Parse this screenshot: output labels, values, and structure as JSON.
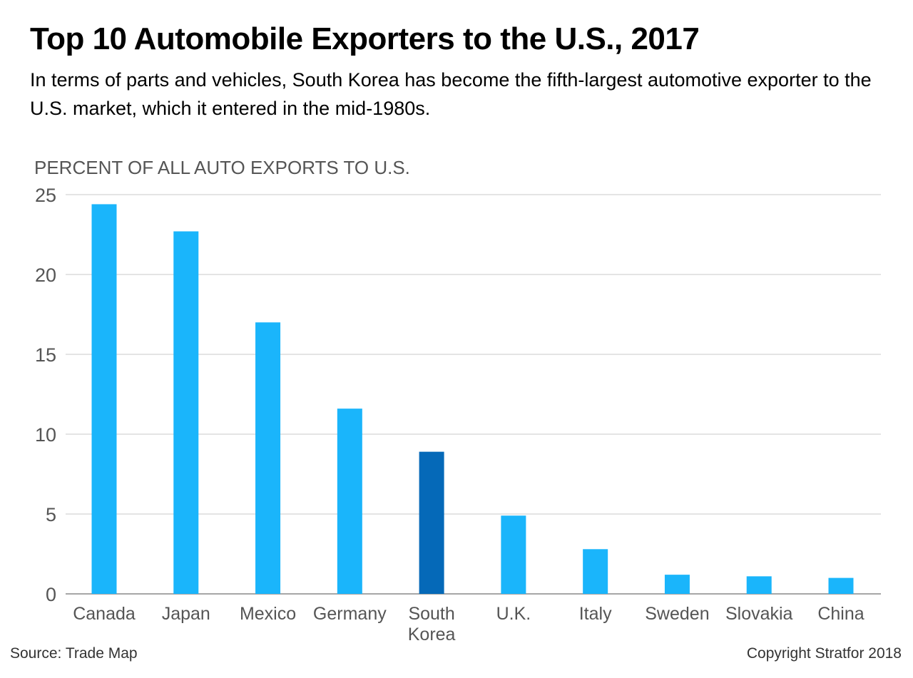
{
  "title": "Top 10 Automobile Exporters to the U.S., 2017",
  "subtitle": "In terms of parts and vehicles, South Korea has become the fifth-largest automotive exporter to the U.S. market, which it entered in the mid-1980s.",
  "source": "Source: Trade Map",
  "copyright": "Copyright Stratfor 2018",
  "colors": {
    "bar": "#1ab5fb",
    "highlight": "#0569b8",
    "grid": "#c8c8c8",
    "axis_text": "#555555"
  },
  "chart_data": {
    "type": "bar",
    "ylabel": "PERCENT OF ALL AUTO EXPORTS TO U.S.",
    "ylim": [
      0,
      25
    ],
    "yticks": [
      0,
      5,
      10,
      15,
      20,
      25
    ],
    "grid": true,
    "categories": [
      "Canada",
      "Japan",
      "Mexico",
      "Germany",
      "South Korea",
      "U.K.",
      "Italy",
      "Sweden",
      "Slovakia",
      "China"
    ],
    "category_lines": [
      [
        "Canada"
      ],
      [
        "Japan"
      ],
      [
        "Mexico"
      ],
      [
        "Germany"
      ],
      [
        "South",
        "Korea"
      ],
      [
        "U.K."
      ],
      [
        "Italy"
      ],
      [
        "Sweden"
      ],
      [
        "Slovakia"
      ],
      [
        "China"
      ]
    ],
    "values": [
      24.4,
      22.7,
      17.0,
      11.6,
      8.9,
      4.9,
      2.8,
      1.2,
      1.1,
      1.0
    ],
    "highlight": "South Korea"
  }
}
